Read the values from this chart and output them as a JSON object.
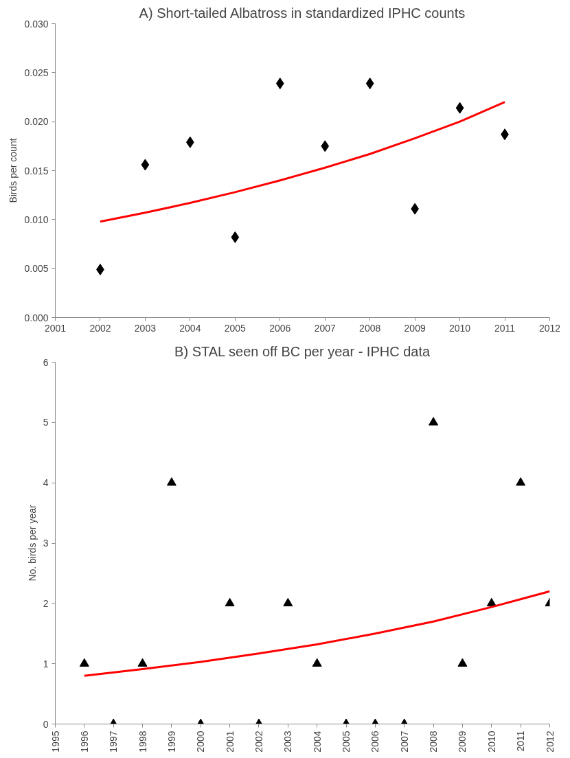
{
  "chart_data": [
    {
      "type": "scatter",
      "title": "A) Short-tailed Albatross in standardized IPHC counts",
      "ylabel": "Birds per count",
      "xlim": [
        2001,
        2012
      ],
      "xticks": [
        2001,
        2002,
        2003,
        2004,
        2005,
        2006,
        2007,
        2008,
        2009,
        2010,
        2011,
        2012
      ],
      "ylim": [
        0,
        0.03
      ],
      "yticks": [
        {
          "value": 0,
          "label": "0.000"
        },
        {
          "value": 0.005,
          "label": "0.005"
        },
        {
          "value": 0.01,
          "label": "0.010"
        },
        {
          "value": 0.015,
          "label": "0.015"
        },
        {
          "value": 0.02,
          "label": "0.020"
        },
        {
          "value": 0.025,
          "label": "0.025"
        },
        {
          "value": 0.03,
          "label": "0.030"
        }
      ],
      "grid": false,
      "series": [
        {
          "marker": "diamond",
          "color": "#000000",
          "x": [
            2002,
            2003,
            2004,
            2005,
            2006,
            2007,
            2008,
            2009,
            2010,
            2011
          ],
          "values": [
            0.0049,
            0.0156,
            0.0179,
            0.0082,
            0.0239,
            0.0175,
            0.0239,
            0.0111,
            0.0214,
            0.0187
          ]
        },
        {
          "type": "line",
          "marker": "none",
          "color": "#ff0000",
          "x": [
            2002,
            2003,
            2004,
            2005,
            2006,
            2007,
            2008,
            2009,
            2010,
            2011
          ],
          "values": [
            0.0098,
            0.0107,
            0.0117,
            0.0128,
            0.014,
            0.0153,
            0.0167,
            0.0183,
            0.02,
            0.022
          ]
        }
      ]
    },
    {
      "type": "scatter",
      "title": "B) STAL seen off BC per year - IPHC data",
      "ylabel": "No. birds per year",
      "xlim": [
        1995,
        2012
      ],
      "xticks": [
        1995,
        1996,
        1997,
        1998,
        1999,
        2000,
        2001,
        2002,
        2003,
        2004,
        2005,
        2006,
        2007,
        2008,
        2009,
        2010,
        2011,
        2012
      ],
      "ylim": [
        0,
        6
      ],
      "yticks": [
        0,
        1,
        2,
        3,
        4,
        5,
        6
      ],
      "grid": false,
      "series": [
        {
          "marker": "triangle",
          "color": "#000000",
          "x": [
            1996,
            1997,
            1998,
            1999,
            2000,
            2001,
            2002,
            2003,
            2004,
            2005,
            2006,
            2007,
            2008,
            2009,
            2010,
            2011,
            2012
          ],
          "values": [
            1,
            0,
            1,
            4,
            0,
            2,
            0,
            2,
            1,
            0,
            0,
            0,
            5,
            1,
            2,
            4,
            2
          ]
        },
        {
          "type": "line",
          "marker": "none",
          "color": "#ff0000",
          "x": [
            1996,
            1998,
            2000,
            2002,
            2004,
            2006,
            2008,
            2010,
            2012
          ],
          "values": [
            0.8,
            0.91,
            1.03,
            1.17,
            1.32,
            1.5,
            1.7,
            1.94,
            2.2
          ]
        }
      ]
    }
  ]
}
